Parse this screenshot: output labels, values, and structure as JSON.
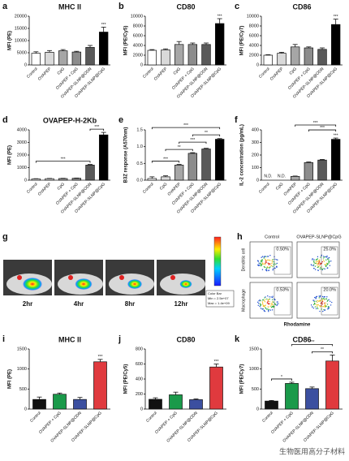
{
  "chart_data": [
    {
      "type": "bar",
      "label": "a",
      "title": "MHC II",
      "y_label": "MFI (PE)",
      "categories": [
        "Control",
        "OVAPEP",
        "CpG",
        "OVAPEP + CpG",
        "OVAPEP-SLNP@ODN",
        "OVAPEP-SLNP@CpG"
      ],
      "values": [
        4800,
        5200,
        5800,
        5300,
        7200,
        13500
      ],
      "errors": [
        600,
        700,
        500,
        300,
        800,
        2000
      ],
      "sig": [
        null,
        null,
        null,
        null,
        null,
        "***"
      ],
      "colors": [
        "#ffffff",
        "#d9d9d9",
        "#a6a6a6",
        "#8c8c8c",
        "#595959",
        "#000000"
      ],
      "ylim": [
        0,
        20000
      ],
      "yticks": [
        0,
        5000,
        10000,
        15000,
        20000
      ]
    },
    {
      "type": "bar",
      "label": "b",
      "title": "CD80",
      "y_label": "MFI (PE/Cy5)",
      "categories": [
        "Control",
        "OVAPEP",
        "CpG",
        "OVAPEP + CpG",
        "OVAPEP-SLNP@ODN",
        "OVAPEP-SLNP@CpG"
      ],
      "values": [
        3000,
        3100,
        4200,
        4200,
        4200,
        8500
      ],
      "errors": [
        150,
        200,
        600,
        300,
        300,
        1000
      ],
      "sig": [
        null,
        null,
        null,
        null,
        null,
        "***"
      ],
      "colors": [
        "#ffffff",
        "#d9d9d9",
        "#a6a6a6",
        "#8c8c8c",
        "#595959",
        "#000000"
      ],
      "ylim": [
        0,
        10000
      ],
      "yticks": [
        0,
        2000,
        4000,
        6000,
        8000,
        10000
      ]
    },
    {
      "type": "bar",
      "label": "c",
      "title": "CD86",
      "y_label": "MFI (PE/Cy7)",
      "categories": [
        "Control",
        "OVAPEP",
        "CpG",
        "OVAPEP + CpG",
        "OVAPEP-SLNP@ODN",
        "OVAPEP-SLNP@CpG"
      ],
      "values": [
        2000,
        2400,
        3700,
        3500,
        3200,
        8300
      ],
      "errors": [
        100,
        200,
        500,
        200,
        300,
        1100
      ],
      "sig": [
        null,
        null,
        null,
        null,
        null,
        "***"
      ],
      "colors": [
        "#ffffff",
        "#d9d9d9",
        "#a6a6a6",
        "#8c8c8c",
        "#595959",
        "#000000"
      ],
      "ylim": [
        0,
        10000
      ],
      "yticks": [
        0,
        2000,
        4000,
        6000,
        8000,
        10000
      ]
    },
    {
      "type": "bar",
      "label": "d",
      "title": "OVAPEP-H-2Kb",
      "y_label": "MFI (PE)",
      "categories": [
        "Control",
        "OVAPEP",
        "CpG",
        "OVAPEP + CpG",
        "OVAPEP-SLNP@ODN",
        "OVAPEP-SLNP@CpG"
      ],
      "values": [
        100,
        120,
        130,
        150,
        1200,
        3600
      ],
      "errors": [
        20,
        20,
        20,
        20,
        50,
        200
      ],
      "sig": [
        null,
        null,
        null,
        null,
        null,
        null
      ],
      "brackets": [
        {
          "from": 0,
          "to": 4,
          "label": "***"
        },
        {
          "from": 4,
          "to": 5,
          "label": "***"
        }
      ],
      "colors": [
        "#ffffff",
        "#d9d9d9",
        "#a6a6a6",
        "#8c8c8c",
        "#595959",
        "#000000"
      ],
      "ylim": [
        0,
        4000
      ],
      "yticks": [
        0,
        1000,
        2000,
        3000,
        4000
      ]
    },
    {
      "type": "bar",
      "label": "e",
      "y_label": "B3Z response (A570nm)",
      "categories": [
        "Control",
        "CpG",
        "OVAPEP",
        "OVAPEP + CpG",
        "OVAPEP-SLNP@ODN",
        "OVAPEP-SLNP@CpG"
      ],
      "values": [
        0.05,
        0.1,
        0.45,
        0.8,
        0.93,
        1.22
      ],
      "errors": [
        0.05,
        0.03,
        0.02,
        0.02,
        0.02,
        0.02
      ],
      "sig": [
        null,
        null,
        null,
        null,
        null,
        null
      ],
      "brackets": [
        {
          "from": 0,
          "to": 2,
          "label": "***"
        },
        {
          "from": 1,
          "to": 3,
          "label": "**"
        },
        {
          "from": 2,
          "to": 4,
          "label": "***"
        },
        {
          "from": 3,
          "to": 5,
          "label": "**"
        },
        {
          "from": 0,
          "to": 5,
          "label": "***"
        }
      ],
      "colors": [
        "#ffffff",
        "#d9d9d9",
        "#a6a6a6",
        "#8c8c8c",
        "#595959",
        "#000000"
      ],
      "ylim": [
        0,
        1.5
      ],
      "yticks": [
        {
          "value": 0,
          "label": "0.0"
        },
        0.5,
        {
          "value": 1,
          "label": "1.0"
        },
        1.5
      ]
    },
    {
      "type": "bar",
      "label": "f",
      "y_label": "IL-2 concentration (pg/mL)",
      "categories": [
        "Control",
        "CpG",
        "OVAPEP",
        "OVAPEP + CpG",
        "OVAPEP-SLNP@ODN",
        "OVAPEP-SLNP@CpG"
      ],
      "values": [
        null,
        null,
        30,
        140,
        160,
        325
      ],
      "errors": [
        null,
        null,
        3,
        5,
        5,
        10
      ],
      "value_labels": [
        "N.D.",
        "N.D.",
        null,
        null,
        null,
        null
      ],
      "sig": [
        null,
        null,
        null,
        null,
        null,
        "***"
      ],
      "brackets": [
        {
          "from": 3,
          "to": 5,
          "label": "***"
        },
        {
          "from": 2,
          "to": 5,
          "label": "***"
        }
      ],
      "colors": [
        "#ffffff",
        "#d9d9d9",
        "#a6a6a6",
        "#8c8c8c",
        "#595959",
        "#000000"
      ],
      "ylim": [
        0,
        400
      ],
      "yticks": [
        0,
        100,
        200,
        300,
        400
      ]
    },
    {
      "type": "bar",
      "label": "i",
      "title": "MHC II",
      "y_label": "MFI (PE)",
      "categories": [
        "Control",
        "OVAPEP + CpG",
        "OVAPEP-SLNP@ODN",
        "OVAPEP-SLNP@CpG"
      ],
      "values": [
        240,
        370,
        240,
        1180
      ],
      "errors": [
        60,
        30,
        50,
        60
      ],
      "sig": [
        null,
        null,
        null,
        "***"
      ],
      "colors": [
        "#111111",
        "#1a9a4a",
        "#3b4fa0",
        "#e03a3e"
      ],
      "ylim": [
        0,
        1500
      ],
      "yticks": [
        0,
        500,
        1000,
        1500
      ]
    },
    {
      "type": "bar",
      "label": "j",
      "title": "CD80",
      "y_label": "MFI (PE/Cy5)",
      "categories": [
        "Control",
        "OVAPEP + CpG",
        "OVAPEP-SLNP@ODN",
        "OVAPEP-SLNP@CpG"
      ],
      "values": [
        130,
        190,
        125,
        560
      ],
      "errors": [
        20,
        35,
        10,
        40
      ],
      "sig": [
        null,
        null,
        null,
        "***"
      ],
      "colors": [
        "#111111",
        "#1a9a4a",
        "#3b4fa0",
        "#e03a3e"
      ],
      "ylim": [
        0,
        800
      ],
      "yticks": [
        0,
        200,
        400,
        600,
        800
      ]
    },
    {
      "type": "bar",
      "label": "k",
      "title": "CD86",
      "y_label": "MFI (PE/Cy7)",
      "categories": [
        "Control",
        "OVAPEP + CpG",
        "OVAPEP-SLNP@ODN",
        "OVAPEP-SLNP@CpG"
      ],
      "values": [
        200,
        640,
        510,
        1200
      ],
      "errors": [
        15,
        30,
        40,
        150
      ],
      "sig": [
        null,
        null,
        null,
        null
      ],
      "brackets": [
        {
          "from": 0,
          "to": 1,
          "label": "*"
        },
        {
          "from": 2,
          "to": 3,
          "label": "**"
        },
        {
          "from": 1,
          "to": 3,
          "label": "***"
        }
      ],
      "colors": [
        "#111111",
        "#1a9a4a",
        "#3b4fa0",
        "#e03a3e"
      ],
      "ylim": [
        0,
        1500
      ],
      "yticks": [
        0,
        500,
        1000,
        1500
      ]
    }
  ],
  "panel_g": {
    "label": "g",
    "times": [
      "2hr",
      "4hr",
      "8hr",
      "12hr"
    ],
    "color_bar": [
      "Color Bar",
      "Min = 2.5e+07",
      "Max = 1.4e+09"
    ]
  },
  "panel_h": {
    "label": "h",
    "columns": [
      "Control",
      "OVAPEP-SLNP@CpG"
    ],
    "rows": [
      "Dendritic cell",
      "Macrophage"
    ],
    "percentages": [
      [
        "0.50%",
        "25.0%"
      ],
      [
        "0.53%",
        "20.0%"
      ]
    ],
    "x_label": "Rhodamine"
  },
  "watermark": "生物医用高分子材料"
}
